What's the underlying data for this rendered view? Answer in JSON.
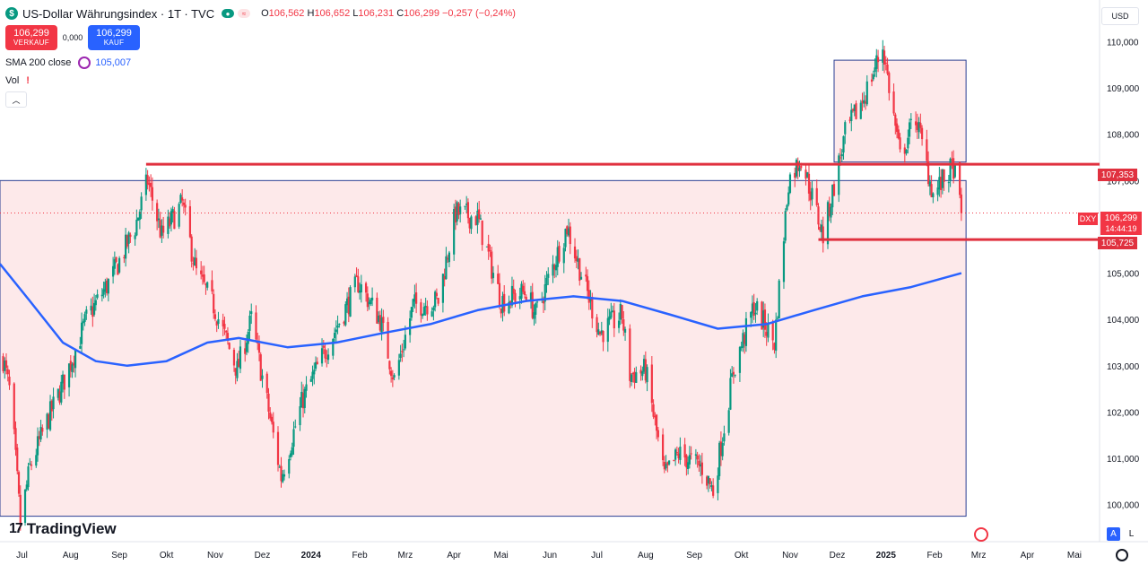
{
  "legend": {
    "symbol_icon": "dollar-sign-icon",
    "title": "US-Dollar Währungsindex · 1T · TVC",
    "ohlc": [
      {
        "key": "O",
        "value": "106,562"
      },
      {
        "key": "H",
        "value": "106,652"
      },
      {
        "key": "L",
        "value": "106,231"
      },
      {
        "key": "C",
        "value": "106,299"
      }
    ],
    "change": "−0,257 (−0,24%)"
  },
  "trade": {
    "sell_price": "106,299",
    "sell_label": "VERKAUF",
    "spread": "0,000",
    "buy_price": "106,299",
    "buy_label": "KAUF"
  },
  "indicators": {
    "sma_label": "SMA 200 close",
    "sma_value": "105,007",
    "vol_label": "Vol",
    "vol_warning": "!"
  },
  "currency": "USD",
  "price_tags": {
    "upper_level": "107,353",
    "lower_level": "105,725",
    "symbol": "DXY",
    "last_price": "106,299",
    "countdown": "14:44:19"
  },
  "brand": "TradingView",
  "bottom_buttons": {
    "auto": "A",
    "log": "L"
  },
  "colors": {
    "up": "#089981",
    "down": "#f23645",
    "sma": "#2962ff",
    "level_line": "#e0313f",
    "zone_fill": "#fde3e5",
    "zone_border": "#2c3f93"
  },
  "chart_data": {
    "type": "candlestick",
    "title": "US-Dollar Währungsindex · 1T · TVC",
    "x_range": [
      "2023-07-01",
      "2025-05-31"
    ],
    "x_ticks": [
      {
        "date": "2023-07-15",
        "label": "Jul"
      },
      {
        "date": "2023-08-15",
        "label": "Aug"
      },
      {
        "date": "2023-09-15",
        "label": "Sep"
      },
      {
        "date": "2023-10-15",
        "label": "Okt"
      },
      {
        "date": "2023-11-15",
        "label": "Nov"
      },
      {
        "date": "2023-12-15",
        "label": "Dez"
      },
      {
        "date": "2024-01-15",
        "label": "2024"
      },
      {
        "date": "2024-02-15",
        "label": "Feb"
      },
      {
        "date": "2024-03-15",
        "label": "Mrz"
      },
      {
        "date": "2024-04-15",
        "label": "Apr"
      },
      {
        "date": "2024-05-15",
        "label": "Mai"
      },
      {
        "date": "2024-06-15",
        "label": "Jun"
      },
      {
        "date": "2024-07-15",
        "label": "Jul"
      },
      {
        "date": "2024-08-15",
        "label": "Aug"
      },
      {
        "date": "2024-09-15",
        "label": "Sep"
      },
      {
        "date": "2024-10-15",
        "label": "Okt"
      },
      {
        "date": "2024-11-15",
        "label": "Nov"
      },
      {
        "date": "2024-12-15",
        "label": "Dez"
      },
      {
        "date": "2025-01-15",
        "label": "2025"
      },
      {
        "date": "2025-02-15",
        "label": "Feb"
      },
      {
        "date": "2025-03-15",
        "label": "Mrz"
      },
      {
        "date": "2025-04-15",
        "label": "Apr"
      },
      {
        "date": "2025-05-15",
        "label": "Mai"
      }
    ],
    "y_range": [
      99.2,
      110.9
    ],
    "y_ticks": [
      "110,000",
      "109,000",
      "108,000",
      "107,000",
      "105,000",
      "104,000",
      "103,000",
      "102,000",
      "101,000",
      "100,000"
    ],
    "y_tick_values": [
      110,
      109,
      108,
      107,
      105,
      104,
      103,
      102,
      101,
      100
    ],
    "price_path": [
      [
        "2023-07-01",
        103.5
      ],
      [
        "2023-07-08",
        102.3
      ],
      [
        "2023-07-14",
        99.6
      ],
      [
        "2023-07-20",
        100.8
      ],
      [
        "2023-07-31",
        101.8
      ],
      [
        "2023-08-10",
        102.6
      ],
      [
        "2023-08-25",
        104.0
      ],
      [
        "2023-09-10",
        104.9
      ],
      [
        "2023-09-25",
        106.0
      ],
      [
        "2023-10-03",
        107.0
      ],
      [
        "2023-10-12",
        105.8
      ],
      [
        "2023-10-25",
        106.5
      ],
      [
        "2023-11-03",
        105.0
      ],
      [
        "2023-11-14",
        104.3
      ],
      [
        "2023-11-29",
        102.9
      ],
      [
        "2023-12-08",
        104.0
      ],
      [
        "2023-12-27",
        100.6
      ],
      [
        "2024-01-10",
        102.3
      ],
      [
        "2024-01-25",
        103.4
      ],
      [
        "2024-02-14",
        104.8
      ],
      [
        "2024-02-28",
        104.0
      ],
      [
        "2024-03-08",
        102.7
      ],
      [
        "2024-03-20",
        104.3
      ],
      [
        "2024-04-05",
        104.4
      ],
      [
        "2024-04-16",
        106.3
      ],
      [
        "2024-04-30",
        106.2
      ],
      [
        "2024-05-15",
        104.4
      ],
      [
        "2024-05-31",
        104.6
      ],
      [
        "2024-06-06",
        104.1
      ],
      [
        "2024-06-26",
        106.0
      ],
      [
        "2024-07-05",
        105.0
      ],
      [
        "2024-07-17",
        103.7
      ],
      [
        "2024-07-31",
        104.1
      ],
      [
        "2024-08-05",
        102.8
      ],
      [
        "2024-08-15",
        102.9
      ],
      [
        "2024-08-27",
        100.6
      ],
      [
        "2024-09-05",
        101.1
      ],
      [
        "2024-09-20",
        100.8
      ],
      [
        "2024-09-27",
        100.3
      ],
      [
        "2024-10-10",
        102.9
      ],
      [
        "2024-10-23",
        104.3
      ],
      [
        "2024-11-05",
        103.5
      ],
      [
        "2024-11-14",
        107.0
      ],
      [
        "2024-11-22",
        107.5
      ],
      [
        "2024-12-06",
        105.8
      ],
      [
        "2024-12-20",
        108.0
      ],
      [
        "2025-01-01",
        108.8
      ],
      [
        "2025-01-13",
        109.9
      ],
      [
        "2025-01-24",
        107.5
      ],
      [
        "2025-02-03",
        108.4
      ],
      [
        "2025-02-14",
        106.7
      ],
      [
        "2025-02-27",
        107.3
      ],
      [
        "2025-03-04",
        106.3
      ]
    ],
    "sma_200": [
      [
        "2023-07-01",
        105.2
      ],
      [
        "2023-07-20",
        104.4
      ],
      [
        "2023-08-10",
        103.5
      ],
      [
        "2023-08-31",
        103.1
      ],
      [
        "2023-09-20",
        103.0
      ],
      [
        "2023-10-15",
        103.1
      ],
      [
        "2023-11-10",
        103.5
      ],
      [
        "2023-11-30",
        103.6
      ],
      [
        "2023-12-31",
        103.4
      ],
      [
        "2024-01-31",
        103.5
      ],
      [
        "2024-02-29",
        103.7
      ],
      [
        "2024-03-31",
        103.9
      ],
      [
        "2024-04-30",
        104.2
      ],
      [
        "2024-05-31",
        104.4
      ],
      [
        "2024-06-30",
        104.5
      ],
      [
        "2024-07-31",
        104.4
      ],
      [
        "2024-08-31",
        104.1
      ],
      [
        "2024-09-30",
        103.8
      ],
      [
        "2024-10-31",
        103.9
      ],
      [
        "2024-11-30",
        104.2
      ],
      [
        "2024-12-31",
        104.5
      ],
      [
        "2025-01-31",
        104.7
      ],
      [
        "2025-03-04",
        105.0
      ]
    ],
    "horizontal_levels": [
      {
        "value": 107.353,
        "from": "2023-10-02"
      },
      {
        "value": 105.725,
        "from": "2024-12-03"
      }
    ],
    "zones": [
      {
        "from": "2023-07-01",
        "to": "2025-03-07",
        "low": 99.75,
        "high": 107.0
      },
      {
        "from": "2024-12-13",
        "to": "2025-03-07",
        "low": 107.4,
        "high": 109.6
      }
    ],
    "last_price": 106.299
  }
}
